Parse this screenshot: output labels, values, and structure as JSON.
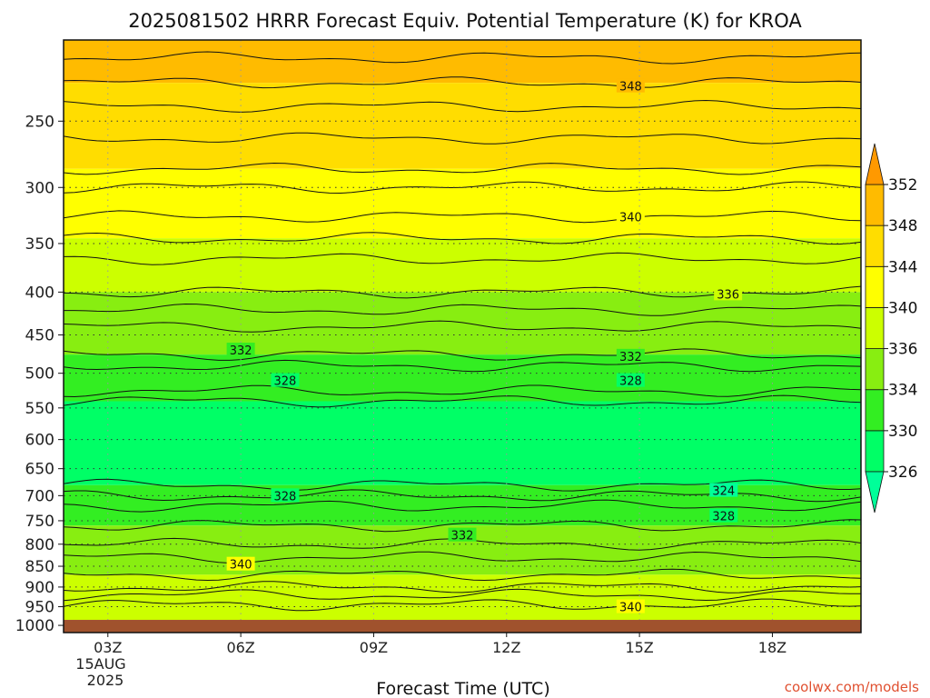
{
  "chart_data": {
    "type": "heatmap",
    "title": "2025081502 HRRR Forecast Equiv. Potential Temperature (K) for KROA",
    "xlabel": "Forecast Time (UTC)",
    "ylabel": "",
    "x_ticks": [
      "03Z",
      "06Z",
      "09Z",
      "12Z",
      "15Z",
      "18Z"
    ],
    "x_date": [
      "15AUG",
      "2025"
    ],
    "x_hours": [
      3,
      6,
      9,
      12,
      15,
      18
    ],
    "x_range_hours": [
      2,
      20
    ],
    "y_ticks": [
      250,
      300,
      350,
      400,
      450,
      500,
      550,
      600,
      650,
      700,
      750,
      800,
      850,
      900,
      950,
      1000
    ],
    "y_range_hPa": [
      200,
      1020
    ],
    "y_scale": "log",
    "surface_hPa": 985,
    "grid": true,
    "colorbar": {
      "levels": [
        326,
        330,
        334,
        336,
        340,
        344,
        348,
        352
      ],
      "colors": [
        "#00ff66",
        "#33ee22",
        "#88ee11",
        "#ccff00",
        "#ffff00",
        "#ffdd00",
        "#ffbb00",
        "#ff9900"
      ],
      "extend": "both",
      "extend_low_color": "#00ff99",
      "extend_high_color": "#ff9900"
    },
    "layers_hPa": [
      {
        "top": 200,
        "bottom": 225,
        "theta_e": 349
      },
      {
        "top": 225,
        "bottom": 285,
        "theta_e": 346
      },
      {
        "top": 285,
        "bottom": 345,
        "theta_e": 342
      },
      {
        "top": 345,
        "bottom": 400,
        "theta_e": 338
      },
      {
        "top": 400,
        "bottom": 475,
        "theta_e": 335
      },
      {
        "top": 475,
        "bottom": 540,
        "theta_e": 331
      },
      {
        "top": 540,
        "bottom": 680,
        "theta_e": 327
      },
      {
        "top": 680,
        "bottom": 760,
        "theta_e": 330
      },
      {
        "top": 760,
        "bottom": 870,
        "theta_e": 335
      },
      {
        "top": 870,
        "bottom": 985,
        "theta_e": 339
      }
    ],
    "contour_labels": [
      {
        "text": "348",
        "hour": 14.8,
        "p": 227
      },
      {
        "text": "340",
        "hour": 14.8,
        "p": 325
      },
      {
        "text": "336",
        "hour": 17.0,
        "p": 402
      },
      {
        "text": "332",
        "hour": 6.0,
        "p": 469
      },
      {
        "text": "332",
        "hour": 14.8,
        "p": 477
      },
      {
        "text": "328",
        "hour": 7.0,
        "p": 510
      },
      {
        "text": "328",
        "hour": 14.8,
        "p": 510
      },
      {
        "text": "328",
        "hour": 7.0,
        "p": 700
      },
      {
        "text": "324",
        "hour": 16.9,
        "p": 690
      },
      {
        "text": "328",
        "hour": 16.9,
        "p": 740
      },
      {
        "text": "332",
        "hour": 11.0,
        "p": 780
      },
      {
        "text": "340",
        "hour": 6.0,
        "p": 845
      },
      {
        "text": "340",
        "hour": 14.8,
        "p": 950
      }
    ]
  },
  "credit": "coolwx.com/models",
  "colors": {
    "ground": "#a0522d",
    "grid": "#333333"
  }
}
